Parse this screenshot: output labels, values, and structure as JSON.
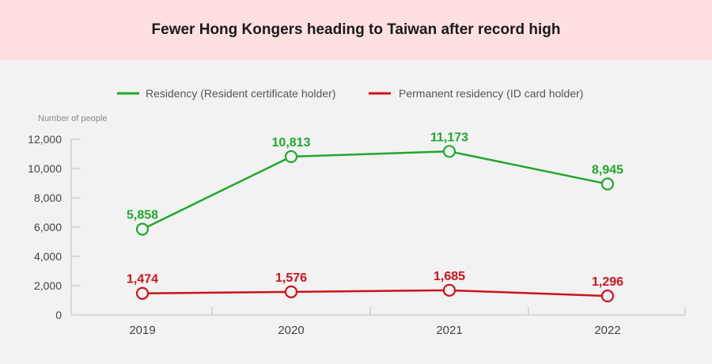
{
  "chart_data": {
    "type": "line",
    "title": "Fewer Hong Kongers heading to Taiwan after record high",
    "ylabel": "Number of people",
    "xlabel": "",
    "categories": [
      "2019",
      "2020",
      "2021",
      "2022"
    ],
    "y_ticks": [
      "0",
      "2,000",
      "4,000",
      "6,000",
      "8,000",
      "10,000",
      "12,000"
    ],
    "ylim": [
      0,
      12000
    ],
    "legend_position": "top",
    "grid": false,
    "series": [
      {
        "name": "Residency (Resident certificate holder)",
        "color": "#1fa82b",
        "values": [
          5858,
          10813,
          11173,
          8945
        ],
        "labels": [
          "5,858",
          "10,813",
          "11,173",
          "8,945"
        ]
      },
      {
        "name": "Permanent residency (ID card holder)",
        "color": "#d0121b",
        "values": [
          1474,
          1576,
          1685,
          1296
        ],
        "labels": [
          "1,474",
          "1,576",
          "1,685",
          "1,296"
        ]
      }
    ]
  }
}
